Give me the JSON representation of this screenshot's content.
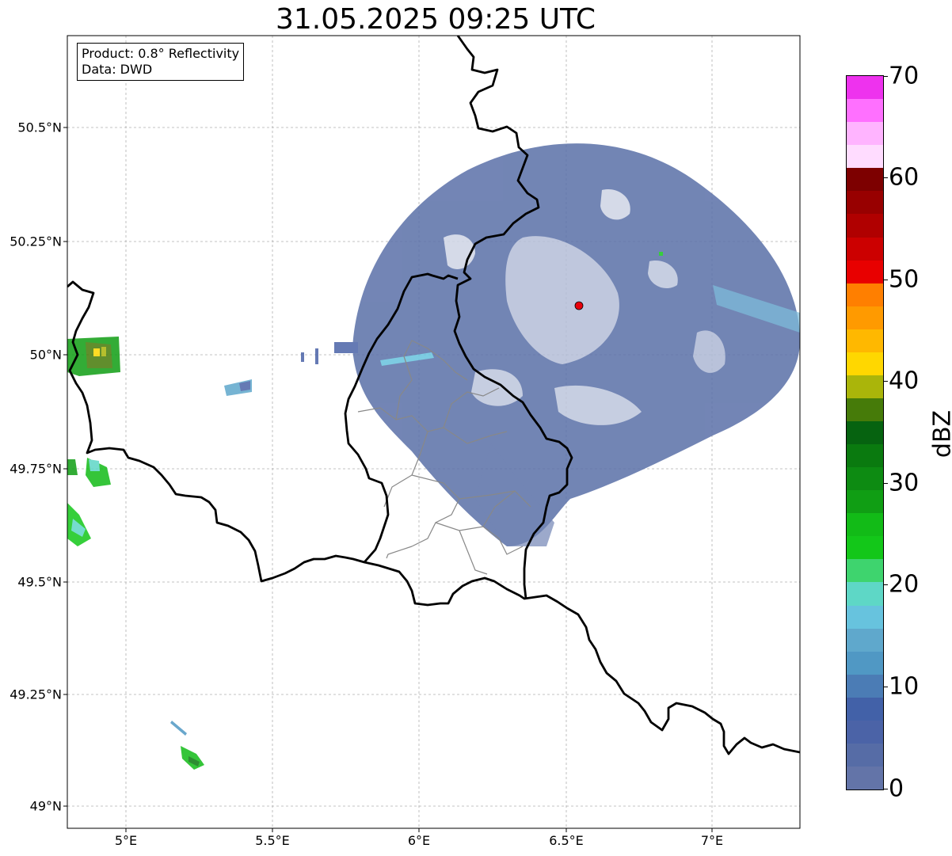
{
  "title": "31.05.2025 09:25 UTC",
  "info": {
    "product": "Product: 0.8° Reflectivity",
    "data": "Data: DWD"
  },
  "map": {
    "lon_range": [
      4.8,
      7.3
    ],
    "lat_range": [
      48.95,
      50.7
    ],
    "lat_ticks": [
      "50.5°N",
      "50.25°N",
      "50°N",
      "49.75°N",
      "49.5°N",
      "49.25°N",
      "49°N"
    ],
    "lon_ticks": [
      "5°E",
      "5.5°E",
      "6°E",
      "6.5°E",
      "7°E"
    ],
    "radar_site": {
      "lon": 6.55,
      "lat": 50.11,
      "marker_color": "#e8000b"
    },
    "grid": true
  },
  "colorbar": {
    "label": "dBZ",
    "range": [
      0,
      70
    ],
    "ticks": [
      "0",
      "10",
      "20",
      "30",
      "40",
      "50",
      "60",
      "70"
    ],
    "colors": [
      "#6374a8",
      "#566ca6",
      "#4b63a7",
      "#4261a8",
      "#4b7cb5",
      "#5098c4",
      "#5fa8cc",
      "#67c3de",
      "#5ed7c6",
      "#3ed46e",
      "#13c719",
      "#12bb17",
      "#109e14",
      "#0d8b12",
      "#0a7a0f",
      "#066310",
      "#467b09",
      "#aab50a",
      "#ffd700",
      "#ffb800",
      "#ff9a00",
      "#ff7f00",
      "#e80000",
      "#cc0000",
      "#b00000",
      "#980000",
      "#7d0000",
      "#ffdcff",
      "#ffb4ff",
      "#ff70ff",
      "#ee32ee"
    ]
  }
}
